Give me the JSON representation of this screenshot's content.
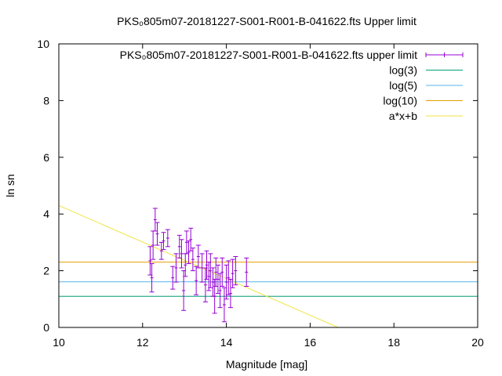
{
  "chart_data": {
    "type": "scatter",
    "title": "PKS₀805m07-20181227-S001-R001-B-041622.fts Upper limit",
    "xlabel": "Magnitude [mag]",
    "ylabel": "ln sn",
    "xlim": [
      10,
      20
    ],
    "ylim": [
      0,
      10
    ],
    "xticks": [
      "10",
      "12",
      "14",
      "16",
      "18",
      "20"
    ],
    "yticks": [
      "0",
      "2",
      "4",
      "6",
      "8",
      "10"
    ],
    "grid": false,
    "legend_position": "top-right",
    "legend": [
      {
        "label": "PKS₀805m07-20181227-S001-R001-B-041622.fts upper limit",
        "kind": "errorbar",
        "color": "#9400d3"
      },
      {
        "label": "log(3)",
        "kind": "line",
        "color": "#009e73"
      },
      {
        "label": "log(5)",
        "kind": "line",
        "color": "#56b4e9"
      },
      {
        "label": "log(10)",
        "kind": "line",
        "color": "#e69f00"
      },
      {
        "label": "a*x+b",
        "kind": "line",
        "color": "#f0e442"
      }
    ],
    "hlines": [
      {
        "name": "log(3)",
        "y": 1.0986,
        "color": "#009e73"
      },
      {
        "name": "log(5)",
        "y": 1.6094,
        "color": "#56b4e9"
      },
      {
        "name": "log(10)",
        "y": 2.3026,
        "color": "#e69f00"
      }
    ],
    "fit_line": {
      "name": "a*x+b",
      "slope": -0.645,
      "intercept": 10.75,
      "color": "#f0e442"
    },
    "series": [
      {
        "name": "PKS₀805m07-20181227-S001-R001-B-041622.fts upper limit",
        "color": "#9400d3",
        "points": [
          {
            "x": 12.18,
            "y": 2.35,
            "err": 0.5
          },
          {
            "x": 12.22,
            "y": 1.75,
            "err": 0.5
          },
          {
            "x": 12.25,
            "y": 2.9,
            "err": 0.5
          },
          {
            "x": 12.3,
            "y": 3.8,
            "err": 0.4
          },
          {
            "x": 12.35,
            "y": 3.3,
            "err": 0.4
          },
          {
            "x": 12.45,
            "y": 2.7,
            "err": 0.3
          },
          {
            "x": 12.5,
            "y": 3.05,
            "err": 0.3
          },
          {
            "x": 12.6,
            "y": 3.15,
            "err": 0.3
          },
          {
            "x": 12.72,
            "y": 1.75,
            "err": 0.4
          },
          {
            "x": 12.8,
            "y": 2.1,
            "err": 0.5
          },
          {
            "x": 12.88,
            "y": 2.85,
            "err": 0.4
          },
          {
            "x": 12.93,
            "y": 2.6,
            "err": 0.5
          },
          {
            "x": 12.98,
            "y": 1.3,
            "err": 0.7
          },
          {
            "x": 13.02,
            "y": 2.2,
            "err": 0.4
          },
          {
            "x": 13.05,
            "y": 3.0,
            "err": 0.4
          },
          {
            "x": 13.1,
            "y": 2.65,
            "err": 0.4
          },
          {
            "x": 13.15,
            "y": 3.1,
            "err": 0.4
          },
          {
            "x": 13.2,
            "y": 2.4,
            "err": 0.4
          },
          {
            "x": 13.28,
            "y": 1.65,
            "err": 0.5
          },
          {
            "x": 13.33,
            "y": 2.5,
            "err": 0.4
          },
          {
            "x": 13.42,
            "y": 2.1,
            "err": 0.5
          },
          {
            "x": 13.5,
            "y": 1.5,
            "err": 0.6
          },
          {
            "x": 13.53,
            "y": 2.2,
            "err": 0.5
          },
          {
            "x": 13.58,
            "y": 1.8,
            "err": 0.5
          },
          {
            "x": 13.62,
            "y": 2.0,
            "err": 0.6
          },
          {
            "x": 13.68,
            "y": 1.6,
            "err": 0.5
          },
          {
            "x": 13.72,
            "y": 1.1,
            "err": 0.6
          },
          {
            "x": 13.75,
            "y": 1.95,
            "err": 0.5
          },
          {
            "x": 13.8,
            "y": 1.7,
            "err": 0.5
          },
          {
            "x": 13.85,
            "y": 1.3,
            "err": 0.6
          },
          {
            "x": 13.9,
            "y": 1.95,
            "err": 0.5
          },
          {
            "x": 13.95,
            "y": 0.8,
            "err": 0.6
          },
          {
            "x": 14.0,
            "y": 1.6,
            "err": 0.6
          },
          {
            "x": 14.05,
            "y": 1.75,
            "err": 0.6
          },
          {
            "x": 14.1,
            "y": 1.2,
            "err": 0.5
          },
          {
            "x": 14.15,
            "y": 1.9,
            "err": 0.5
          },
          {
            "x": 14.22,
            "y": 2.0,
            "err": 0.5
          },
          {
            "x": 14.48,
            "y": 1.95,
            "err": 0.5
          }
        ]
      }
    ]
  }
}
